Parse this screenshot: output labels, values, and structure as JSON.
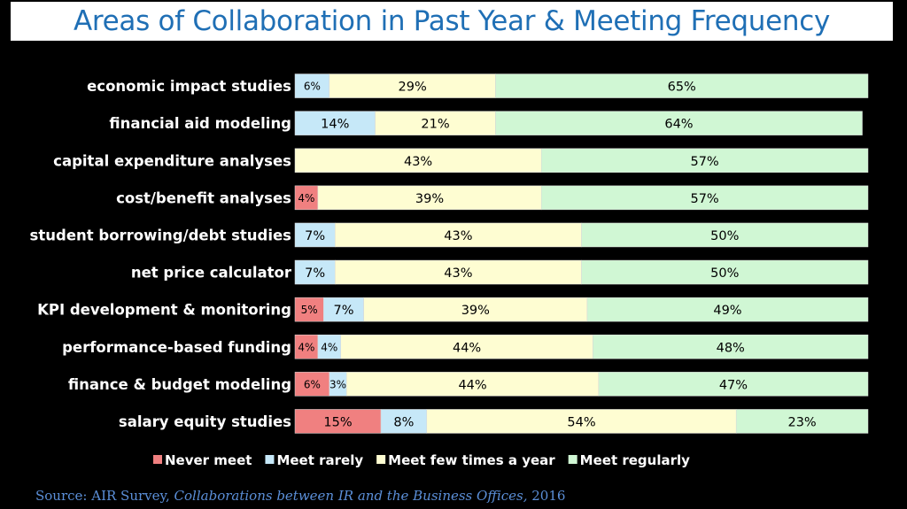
{
  "title": "Areas of Collaboration in Past Year & Meeting Frequency",
  "source": {
    "prefix": "Source:  AIR Survey, ",
    "title": "Collaborations between IR and the Business Offices,",
    "year": " 2016"
  },
  "colors": {
    "never": "#f08080",
    "rarely": "#c6e8f8",
    "few": "#fefdd2",
    "regularly": "#d0f7d4",
    "background": "#000000",
    "title": "#1f6fb5",
    "source": "#5b8fd8"
  },
  "chart_data": {
    "type": "bar",
    "orientation": "horizontal",
    "stacked": "percent",
    "legend_position": "bottom",
    "categories": [
      "economic impact studies",
      "financial aid modeling",
      "capital expenditure analyses",
      "cost/benefit analyses",
      "student borrowing/debt studies",
      "net price calculator",
      "KPI development & monitoring",
      "performance-based funding",
      "finance & budget modeling",
      "salary equity studies"
    ],
    "series": [
      {
        "name": "Never meet",
        "values": [
          0,
          0,
          0,
          4,
          0,
          0,
          5,
          4,
          6,
          15
        ]
      },
      {
        "name": "Meet rarely",
        "values": [
          6,
          14,
          0,
          0,
          7,
          7,
          7,
          4,
          3,
          8
        ]
      },
      {
        "name": "Meet few times a year",
        "values": [
          29,
          21,
          43,
          39,
          43,
          43,
          39,
          44,
          44,
          54
        ]
      },
      {
        "name": "Meet regularly",
        "values": [
          65,
          64,
          57,
          57,
          50,
          50,
          49,
          48,
          47,
          23
        ]
      }
    ],
    "value_suffix": "%",
    "xlim": [
      0,
      100
    ]
  }
}
